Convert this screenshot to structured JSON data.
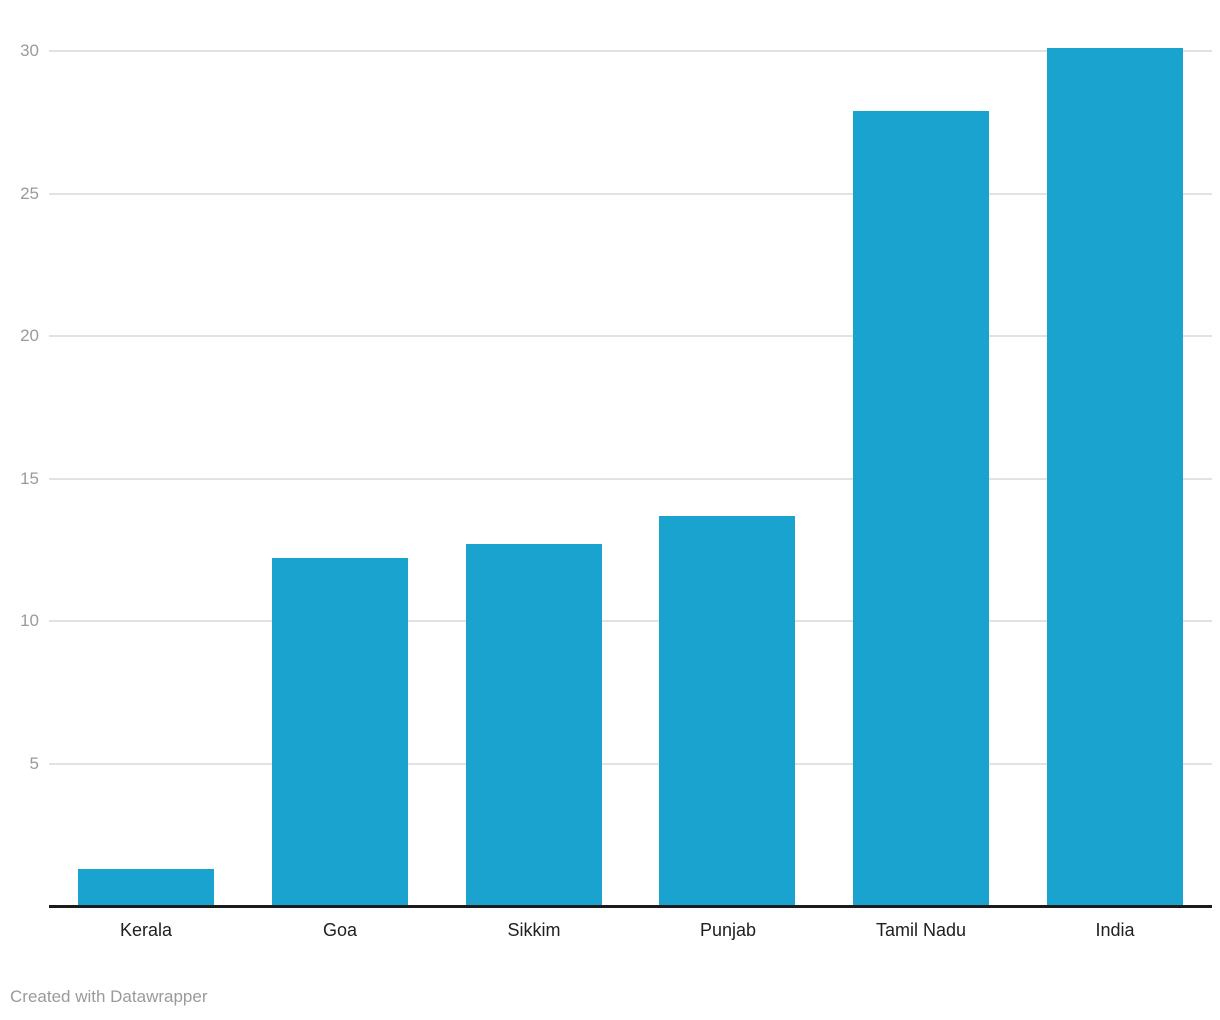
{
  "chart_data": {
    "type": "bar",
    "categories": [
      "Kerala",
      "Goa",
      "Sikkim",
      "Punjab",
      "Tamil Nadu",
      "India"
    ],
    "values": [
      1.3,
      12.2,
      12.7,
      13.7,
      27.9,
      30.1
    ],
    "title": "",
    "xlabel": "",
    "ylabel": "",
    "ylim": [
      0,
      31.8
    ],
    "yticks": [
      5,
      10,
      15,
      20,
      25,
      30
    ],
    "grid": "horizontal",
    "legend": "none",
    "bar_color": "#1aa3ce"
  },
  "colors": {
    "bar": "#1aa3ce",
    "gridline": "#e2e2e2",
    "axis_line": "#1b1b1d",
    "tick_label": "#9a9a9a",
    "category_label": "#202022",
    "footer_text": "#9a9a9a",
    "background": "#ffffff"
  },
  "footer": {
    "credit": "Created with Datawrapper"
  }
}
